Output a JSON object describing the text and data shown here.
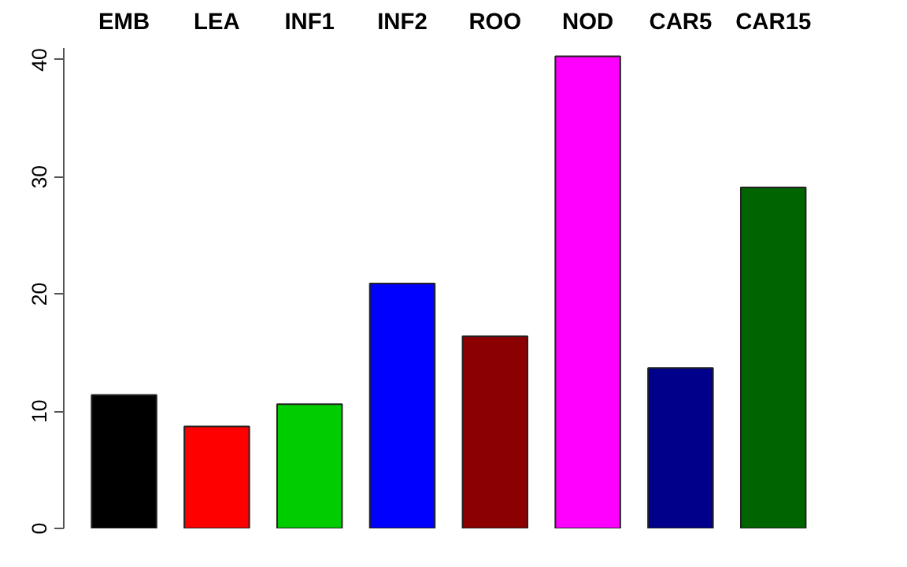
{
  "chart_data": {
    "type": "bar",
    "categories": [
      "EMB",
      "LEA",
      "INF1",
      "INF2",
      "ROO",
      "NOD",
      "CAR5",
      "CAR15"
    ],
    "values": [
      11.4,
      8.7,
      10.6,
      20.9,
      16.4,
      40.3,
      13.7,
      29.1
    ],
    "colors": [
      "#000000",
      "#ff0000",
      "#00cd00",
      "#0000ff",
      "#8b0000",
      "#ff00ff",
      "#00008b",
      "#006400"
    ],
    "ylim": [
      0,
      41
    ],
    "yticks": [
      0,
      10,
      20,
      30,
      40
    ],
    "grid": false
  }
}
